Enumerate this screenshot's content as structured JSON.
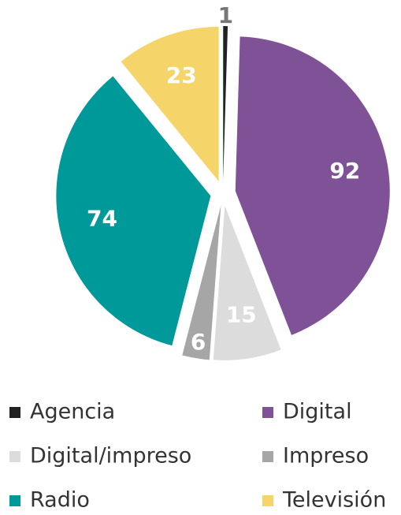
{
  "chart_data": {
    "type": "pie",
    "categories": [
      "Agencia",
      "Digital",
      "Digital/impreso",
      "Impreso",
      "Radio",
      "Televisión"
    ],
    "values": [
      1,
      92,
      15,
      6,
      74,
      23
    ],
    "colors": [
      "#222222",
      "#7f5297",
      "#dcdcdc",
      "#a6a6a6",
      "#009999",
      "#f5d469"
    ],
    "legend": "bottom"
  }
}
